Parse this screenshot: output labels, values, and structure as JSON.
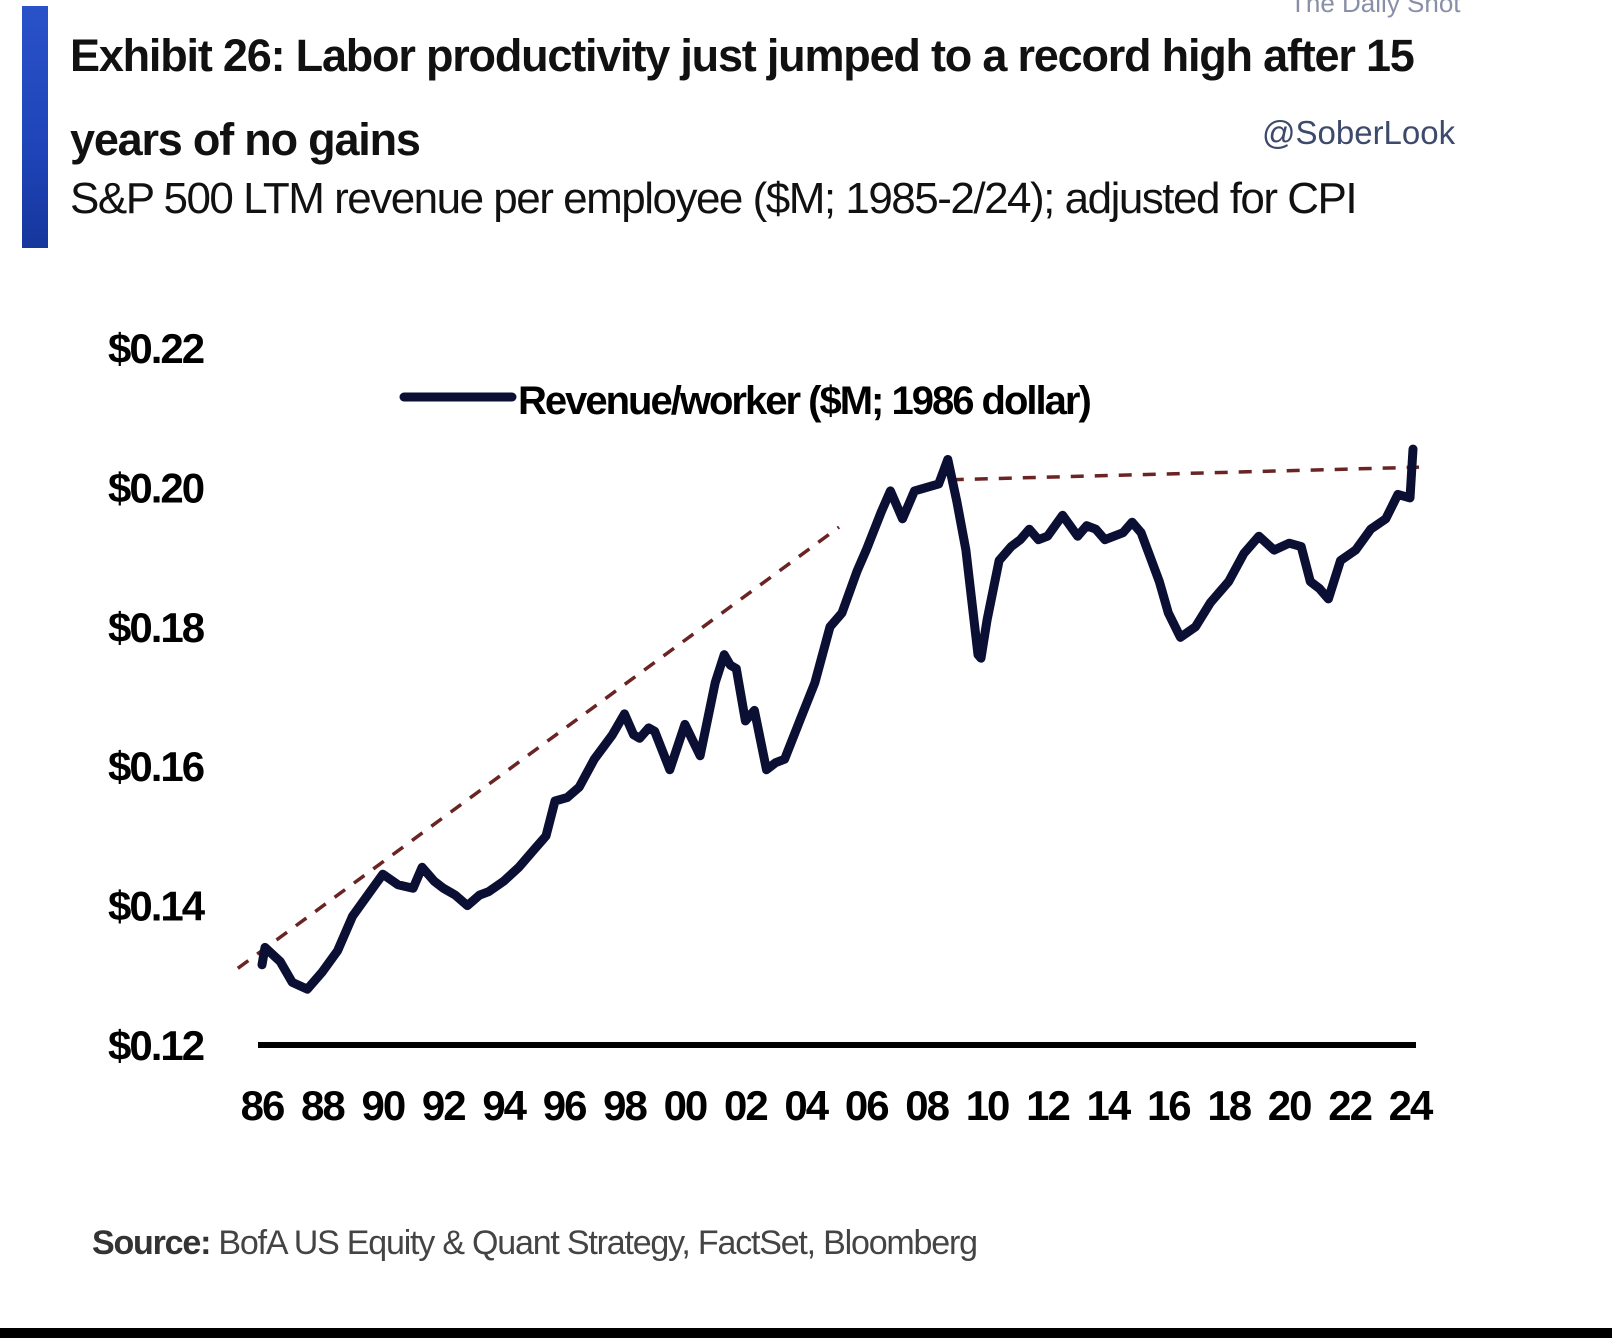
{
  "header": {
    "title_line1": "Exhibit 26: Labor productivity just jumped to a record high after 15",
    "title_line2": "years of no gains",
    "subtitle": "S&P 500 LTM revenue per employee ($M; 1985-2/24); adjusted for CPI",
    "watermark_top": "The Daily Shot",
    "watermark": "@SoberLook"
  },
  "footer": {
    "source_label": "Source:",
    "source_text": " BofA US Equity & Quant Strategy, FactSet, Bloomberg"
  },
  "colors": {
    "accent": "#1e44b8",
    "series_line": "#0a0f33",
    "trend_line": "#6b2424",
    "axis": "#000000"
  },
  "chart_data": {
    "type": "line",
    "title": "Exhibit 26: Labor productivity just jumped to a record high after 15 years of no gains",
    "subtitle": "S&P 500 LTM revenue per employee ($M; 1985-2/24); adjusted for CPI",
    "xlabel": "",
    "ylabel": "",
    "xlim": [
      1986,
      2024
    ],
    "ylim": [
      0.12,
      0.22
    ],
    "grid": false,
    "legend_position": "top-center",
    "y_ticks": [
      0.12,
      0.14,
      0.16,
      0.18,
      0.2,
      0.22
    ],
    "y_tick_labels": [
      "$0.12",
      "$0.14",
      "$0.16",
      "$0.18",
      "$0.20",
      "$0.22"
    ],
    "x_ticks": [
      1986,
      1988,
      1990,
      1992,
      1994,
      1996,
      1998,
      2000,
      2002,
      2004,
      2006,
      2008,
      2010,
      2012,
      2014,
      2016,
      2018,
      2020,
      2022,
      2024
    ],
    "x_tick_labels": [
      "86",
      "88",
      "90",
      "92",
      "94",
      "96",
      "98",
      "00",
      "02",
      "04",
      "06",
      "08",
      "10",
      "12",
      "14",
      "16",
      "18",
      "20",
      "22",
      "24"
    ],
    "series": [
      {
        "name": "Revenue/worker ($M; 1986 dollar)",
        "x": [
          1986.0,
          1986.1,
          1986.6,
          1987.0,
          1987.5,
          1988.0,
          1988.5,
          1989.0,
          1989.5,
          1990.0,
          1990.5,
          1991.0,
          1991.3,
          1991.7,
          1992.0,
          1992.4,
          1992.8,
          1993.2,
          1993.5,
          1994.0,
          1994.5,
          1995.0,
          1995.4,
          1995.7,
          1996.1,
          1996.5,
          1997.0,
          1997.6,
          1998.0,
          1998.3,
          1998.5,
          1998.8,
          1999.0,
          1999.5,
          2000.0,
          2000.5,
          2001.0,
          2001.3,
          2001.5,
          2001.7,
          2002.0,
          2002.3,
          2002.7,
          2003.0,
          2003.3,
          2003.8,
          2004.3,
          2004.8,
          2005.2,
          2005.7,
          2006.0,
          2006.5,
          2006.8,
          2007.2,
          2007.6,
          2008.0,
          2008.4,
          2008.7,
          2009.0,
          2009.3,
          2009.7,
          2009.8,
          2010.0,
          2010.4,
          2010.8,
          2011.1,
          2011.4,
          2011.7,
          2012.0,
          2012.5,
          2013.0,
          2013.3,
          2013.6,
          2013.9,
          2014.2,
          2014.5,
          2014.8,
          2015.1,
          2015.4,
          2015.7,
          2016.0,
          2016.4,
          2016.9,
          2017.4,
          2018.0,
          2018.5,
          2019.0,
          2019.5,
          2020.0,
          2020.4,
          2020.7,
          2021.0,
          2021.3,
          2021.7,
          2022.2,
          2022.7,
          2023.2,
          2023.6,
          2024.0,
          2024.1
        ],
        "values": [
          0.1315,
          0.134,
          0.132,
          0.129,
          0.128,
          0.1305,
          0.1335,
          0.1385,
          0.1415,
          0.1445,
          0.143,
          0.1425,
          0.1455,
          0.1435,
          0.1425,
          0.1415,
          0.14,
          0.1415,
          0.142,
          0.1435,
          0.1455,
          0.148,
          0.15,
          0.155,
          0.1555,
          0.157,
          0.161,
          0.1645,
          0.1675,
          0.1645,
          0.164,
          0.1655,
          0.165,
          0.1595,
          0.166,
          0.1615,
          0.172,
          0.176,
          0.1745,
          0.174,
          0.1665,
          0.168,
          0.1595,
          0.1605,
          0.161,
          0.1665,
          0.172,
          0.18,
          0.182,
          0.188,
          0.191,
          0.1965,
          0.1995,
          0.1955,
          0.1995,
          0.2,
          0.2005,
          0.204,
          0.198,
          0.191,
          0.176,
          0.1755,
          0.181,
          0.1895,
          0.1915,
          0.1925,
          0.194,
          0.1925,
          0.193,
          0.196,
          0.193,
          0.1945,
          0.194,
          0.1925,
          0.193,
          0.1935,
          0.195,
          0.1935,
          0.19,
          0.1865,
          0.182,
          0.1785,
          0.18,
          0.1835,
          0.1865,
          0.1905,
          0.193,
          0.191,
          0.192,
          0.1915,
          0.1865,
          0.1855,
          0.184,
          0.1895,
          0.191,
          0.194,
          0.1955,
          0.199,
          0.1985,
          0.2055
        ]
      }
    ],
    "annotations": [
      {
        "type": "dashed-trend",
        "x": [
          1985.2,
          2005.1
        ],
        "y": [
          0.131,
          0.1943
        ]
      },
      {
        "type": "dashed-trend",
        "x": [
          2008.8,
          2024.3
        ],
        "y": [
          0.2011,
          0.2029
        ]
      }
    ]
  }
}
